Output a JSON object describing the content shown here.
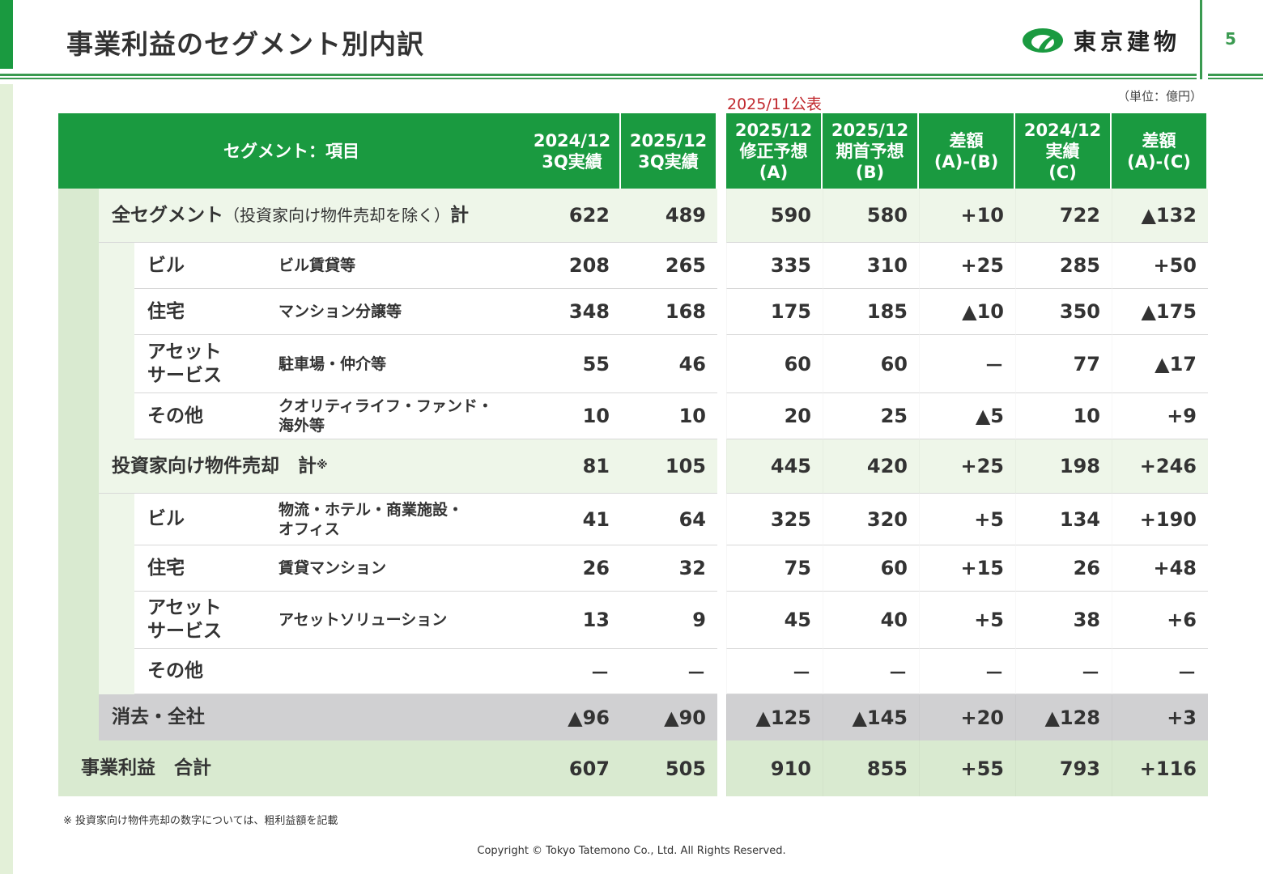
{
  "header": {
    "title": "事業利益のセグメント別内訳",
    "company": "東京建物",
    "page": "5"
  },
  "unit": "（単位：億円）",
  "announce": "2025/11公表",
  "columns": [
    "セグメント：項目",
    "2024/12\n3Q実績",
    "2025/12\n3Q実績",
    "2025/12\n修正予想\n(A)",
    "2025/12\n期首予想\n(B)",
    "差額\n(A)-(B)",
    "2024/12\n実績\n(C)",
    "差額\n(A)-(C)"
  ],
  "rows": [
    {
      "type": "total",
      "label": "全セグメント",
      "label_sub": "（投資家向け物件売却を除く）",
      "label_suffix": "計",
      "values": [
        "622",
        "489",
        "590",
        "580",
        "+10",
        "722",
        "▲132"
      ]
    },
    {
      "type": "item",
      "segment": "ビル",
      "item": "ビル賃貸等",
      "values": [
        "208",
        "265",
        "335",
        "310",
        "+25",
        "285",
        "+50"
      ]
    },
    {
      "type": "item",
      "segment": "住宅",
      "item": "マンション分譲等",
      "values": [
        "348",
        "168",
        "175",
        "185",
        "▲10",
        "350",
        "▲175"
      ]
    },
    {
      "type": "item",
      "segment": "アセット\nサービス",
      "item": "駐車場・仲介等",
      "values": [
        "55",
        "46",
        "60",
        "60",
        "－",
        "77",
        "▲17"
      ]
    },
    {
      "type": "item",
      "segment": "その他",
      "item": "クオリティライフ・ファンド・\n海外等",
      "values": [
        "10",
        "10",
        "20",
        "25",
        "▲5",
        "10",
        "+9"
      ]
    },
    {
      "type": "total",
      "label": "投資家向け物件売却　計",
      "label_sub": "",
      "label_suffix": "※",
      "values": [
        "81",
        "105",
        "445",
        "420",
        "+25",
        "198",
        "+246"
      ]
    },
    {
      "type": "item",
      "segment": "ビル",
      "item": "物流・ホテル・商業施設・\nオフィス",
      "values": [
        "41",
        "64",
        "325",
        "320",
        "+5",
        "134",
        "+190"
      ]
    },
    {
      "type": "item",
      "segment": "住宅",
      "item": "賃貸マンション",
      "values": [
        "26",
        "32",
        "75",
        "60",
        "+15",
        "26",
        "+48"
      ]
    },
    {
      "type": "item",
      "segment": "アセット\nサービス",
      "item": "アセットソリューション",
      "values": [
        "13",
        "9",
        "45",
        "40",
        "+5",
        "38",
        "+6"
      ]
    },
    {
      "type": "item",
      "segment": "その他",
      "item": "",
      "values": [
        "－",
        "－",
        "－",
        "－",
        "－",
        "－",
        "－"
      ]
    },
    {
      "type": "elim",
      "label": "消去・全社",
      "values": [
        "▲96",
        "▲90",
        "▲125",
        "▲145",
        "+20",
        "▲128",
        "+3"
      ]
    },
    {
      "type": "grand",
      "label": "事業利益　合計",
      "values": [
        "607",
        "505",
        "910",
        "855",
        "+55",
        "793",
        "+116"
      ]
    }
  ],
  "footnote": "※ 投資家向け物件売却の数字については、粗利益額を記載",
  "copyright": "Copyright © Tokyo Tatemono Co., Ltd. All Rights Reserved.",
  "colors": {
    "brand_green": "#1a9a40",
    "light_green": "#d9ead0",
    "pale_green": "#eef6e9",
    "elim_gray": "#d0d0d2",
    "announce_red": "#c0282d"
  }
}
